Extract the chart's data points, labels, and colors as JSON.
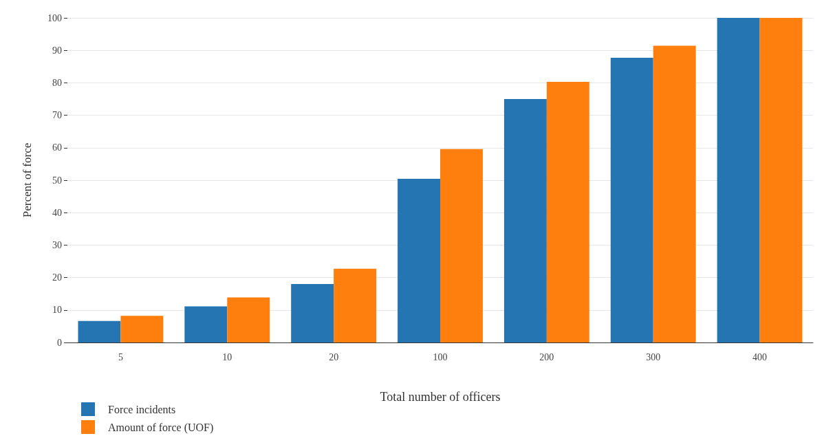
{
  "chart_data": {
    "type": "bar",
    "xlabel": "Total number of officers",
    "ylabel": "Percent of force",
    "categories": [
      "5",
      "10",
      "20",
      "100",
      "200",
      "300",
      "400"
    ],
    "series": [
      {
        "name": "Force incidents",
        "color": "#2475b2",
        "values": [
          6.6,
          11.1,
          18.0,
          50.4,
          75.0,
          87.7,
          100
        ]
      },
      {
        "name": "Amount of force (UOF)",
        "color": "#ff7f0e",
        "values": [
          8.2,
          13.9,
          22.7,
          59.6,
          80.3,
          91.4,
          100
        ]
      }
    ],
    "ylim": [
      0,
      100
    ],
    "yticks": [
      0,
      10,
      20,
      30,
      40,
      50,
      60,
      70,
      80,
      90,
      100
    ],
    "grid": "y",
    "legend": "bottom left"
  }
}
